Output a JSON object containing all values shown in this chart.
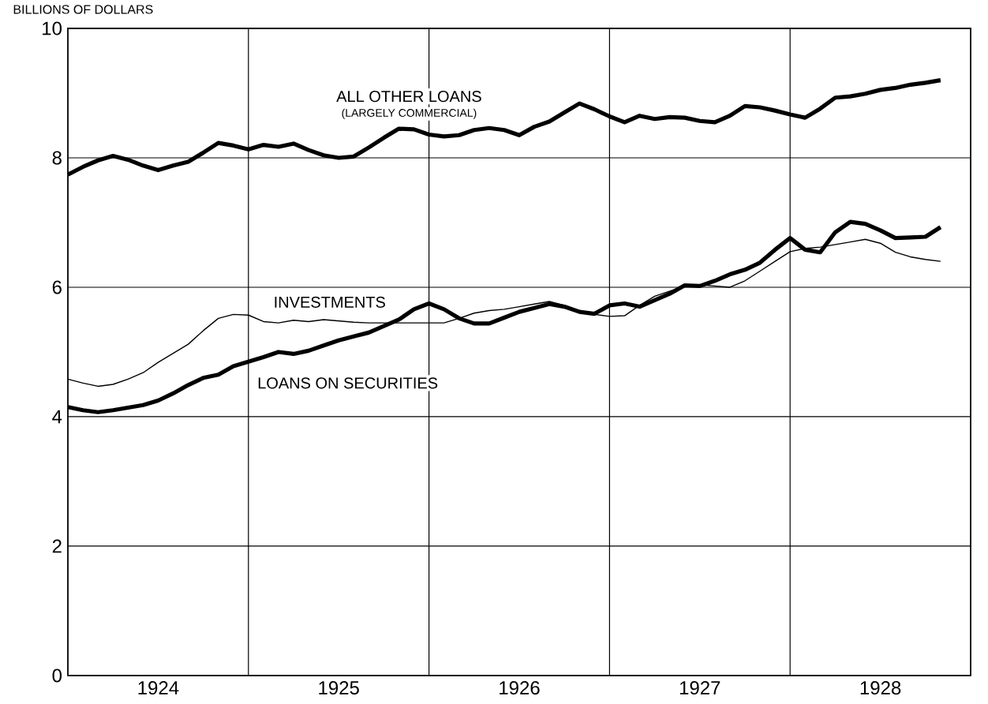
{
  "chart_data": {
    "type": "line",
    "ylabel": "BILLIONS OF DOLLARS",
    "x": [
      "1924-01",
      "1924-02",
      "1924-03",
      "1924-04",
      "1924-05",
      "1924-06",
      "1924-07",
      "1924-08",
      "1924-09",
      "1924-10",
      "1924-11",
      "1924-12",
      "1925-01",
      "1925-02",
      "1925-03",
      "1925-04",
      "1925-05",
      "1925-06",
      "1925-07",
      "1925-08",
      "1925-09",
      "1925-10",
      "1925-11",
      "1925-12",
      "1926-01",
      "1926-02",
      "1926-03",
      "1926-04",
      "1926-05",
      "1926-06",
      "1926-07",
      "1926-08",
      "1926-09",
      "1926-10",
      "1926-11",
      "1926-12",
      "1927-01",
      "1927-02",
      "1927-03",
      "1927-04",
      "1927-05",
      "1927-06",
      "1927-07",
      "1927-08",
      "1927-09",
      "1927-10",
      "1927-11",
      "1927-12",
      "1928-01",
      "1928-02",
      "1928-03",
      "1928-04",
      "1928-05",
      "1928-06",
      "1928-07",
      "1928-08",
      "1928-09",
      "1928-10",
      "1928-11"
    ],
    "series": [
      {
        "name": "ALL OTHER LOANS",
        "color": "#000000",
        "values": [
          7.74,
          7.86,
          7.96,
          8.03,
          7.97,
          7.88,
          7.81,
          7.88,
          7.94,
          8.08,
          8.23,
          8.19,
          8.13,
          8.2,
          8.17,
          8.22,
          8.12,
          8.04,
          8.0,
          8.02,
          8.16,
          8.31,
          8.45,
          8.44,
          8.36,
          8.33,
          8.35,
          8.43,
          8.46,
          8.43,
          8.35,
          8.48,
          8.56,
          8.7,
          8.84,
          8.75,
          8.64,
          8.55,
          8.65,
          8.6,
          8.63,
          8.62,
          8.57,
          8.55,
          8.65,
          8.8,
          8.78,
          8.73,
          8.67,
          8.62,
          8.76,
          8.93,
          8.95,
          8.99,
          9.05,
          9.08,
          9.13,
          9.16,
          9.2
        ]
      },
      {
        "name": "INVESTMENTS",
        "color": "#000000",
        "values": [
          4.58,
          4.52,
          4.47,
          4.5,
          4.58,
          4.68,
          4.84,
          4.98,
          5.12,
          5.33,
          5.52,
          5.58,
          5.57,
          5.47,
          5.45,
          5.49,
          5.47,
          5.5,
          5.48,
          5.46,
          5.45,
          5.45,
          5.45,
          5.45,
          5.45,
          5.45,
          5.52,
          5.6,
          5.64,
          5.66,
          5.7,
          5.74,
          5.78,
          5.72,
          5.64,
          5.58,
          5.55,
          5.56,
          5.72,
          5.86,
          5.94,
          6.02,
          6.04,
          6.02,
          6.0,
          6.1,
          6.25,
          6.4,
          6.55,
          6.6,
          6.62,
          6.66,
          6.7,
          6.74,
          6.68,
          6.54,
          6.47,
          6.43,
          6.4
        ]
      },
      {
        "name": "LOANS ON SECURITIES",
        "color": "#000000",
        "values": [
          4.15,
          4.1,
          4.07,
          4.1,
          4.14,
          4.18,
          4.25,
          4.36,
          4.49,
          4.6,
          4.65,
          4.78,
          4.85,
          4.92,
          5.0,
          4.97,
          5.02,
          5.1,
          5.18,
          5.24,
          5.3,
          5.4,
          5.5,
          5.66,
          5.75,
          5.66,
          5.52,
          5.44,
          5.44,
          5.53,
          5.62,
          5.68,
          5.74,
          5.7,
          5.62,
          5.59,
          5.72,
          5.75,
          5.7,
          5.8,
          5.9,
          6.03,
          6.02,
          6.1,
          6.2,
          6.27,
          6.38,
          6.58,
          6.76,
          6.58,
          6.54,
          6.85,
          7.01,
          6.98,
          6.88,
          6.76,
          6.77,
          6.78,
          6.93
        ]
      }
    ],
    "annotations": [
      "(LARGELY COMMERCIAL)"
    ],
    "xlim": [
      "1924",
      "1929"
    ],
    "xticks": [
      {
        "value": "1924-07",
        "label": "1924"
      },
      {
        "value": "1925-07",
        "label": "1925"
      },
      {
        "value": "1926-07",
        "label": "1926"
      },
      {
        "value": "1927-07",
        "label": "1927"
      },
      {
        "value": "1928-07",
        "label": "1928"
      },
      {
        "value": "1925",
        "label": null
      },
      {
        "value": "1926",
        "label": null
      },
      {
        "value": "1927",
        "label": null
      },
      {
        "value": "1928",
        "label": null
      }
    ],
    "ylim": [
      0,
      10
    ],
    "yticks": [
      0,
      2,
      4,
      6,
      8,
      10
    ],
    "grid": true,
    "marker": "none",
    "line_style": "solid"
  }
}
